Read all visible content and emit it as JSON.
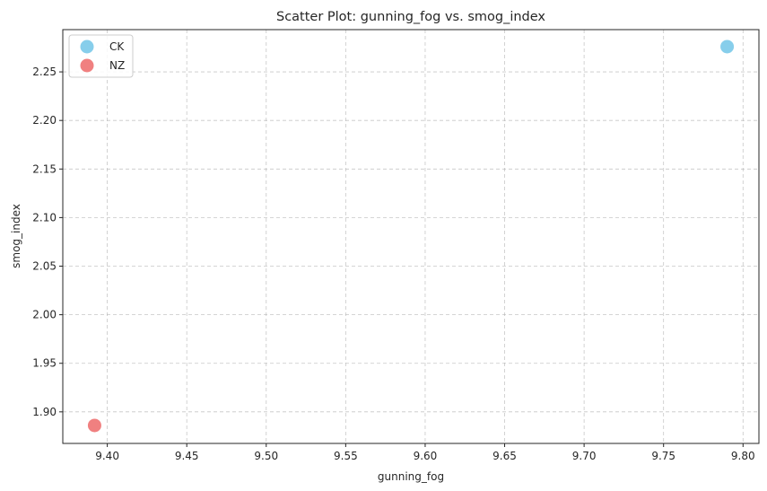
{
  "chart_data": {
    "type": "scatter",
    "title": "Scatter Plot: gunning_fog vs. smog_index",
    "xlabel": "gunning_fog",
    "ylabel": "smog_index",
    "xlim": [
      9.372,
      9.81
    ],
    "ylim": [
      1.8675,
      2.2935
    ],
    "xticks": [
      "9.40",
      "9.45",
      "9.50",
      "9.55",
      "9.60",
      "9.65",
      "9.70",
      "9.75",
      "9.80"
    ],
    "yticks": [
      "1.90",
      "1.95",
      "2.00",
      "2.05",
      "2.10",
      "2.15",
      "2.20",
      "2.25"
    ],
    "grid": true,
    "legend_position": "top-left",
    "series": [
      {
        "name": "CK",
        "color": "#87ceeb",
        "points": [
          {
            "x": 9.79,
            "y": 2.276
          }
        ]
      },
      {
        "name": "NZ",
        "color": "#f08080",
        "points": [
          {
            "x": 9.392,
            "y": 1.886
          }
        ]
      }
    ]
  }
}
